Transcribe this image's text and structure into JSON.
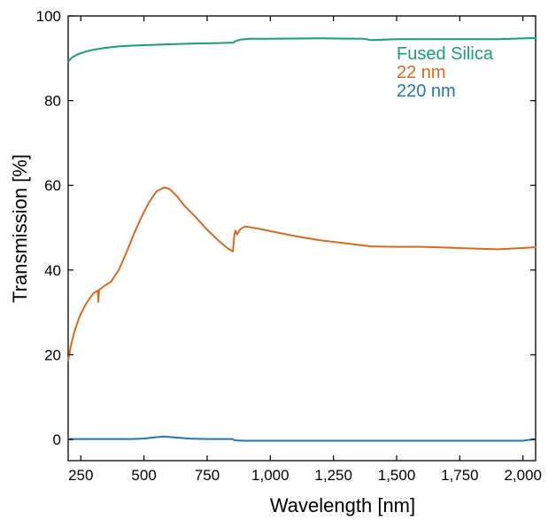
{
  "chart_data": {
    "type": "line",
    "title": "",
    "xlabel": "Wavelength [nm]",
    "ylabel": "Transmission [%]",
    "xlim": [
      200,
      2050
    ],
    "ylim": [
      -5,
      100
    ],
    "xticks": [
      250,
      500,
      750,
      1000,
      1250,
      1500,
      1750,
      2000
    ],
    "xtick_labels": [
      "250",
      "500",
      "750",
      "1,000",
      "1,250",
      "1,500",
      "1,750",
      "2,000"
    ],
    "yticks": [
      0,
      20,
      40,
      60,
      80,
      100
    ],
    "ytick_labels": [
      "0",
      "20",
      "40",
      "60",
      "80",
      "100"
    ],
    "grid": false,
    "legend_position": "top-right",
    "series": [
      {
        "name": "Fused Silica",
        "color": "#1a9e77",
        "points": [
          [
            200,
            89.2
          ],
          [
            215,
            90.2
          ],
          [
            240,
            91.0
          ],
          [
            270,
            91.6
          ],
          [
            300,
            92.0
          ],
          [
            350,
            92.5
          ],
          [
            400,
            92.8
          ],
          [
            450,
            93.0
          ],
          [
            500,
            93.1
          ],
          [
            600,
            93.3
          ],
          [
            700,
            93.5
          ],
          [
            800,
            93.6
          ],
          [
            855,
            93.7
          ],
          [
            860,
            94.0
          ],
          [
            880,
            94.4
          ],
          [
            920,
            94.6
          ],
          [
            1000,
            94.6
          ],
          [
            1200,
            94.7
          ],
          [
            1370,
            94.6
          ],
          [
            1380,
            94.5
          ],
          [
            1400,
            94.3
          ],
          [
            1500,
            94.5
          ],
          [
            1700,
            94.5
          ],
          [
            1900,
            94.5
          ],
          [
            2050,
            94.8
          ]
        ]
      },
      {
        "name": "22 nm",
        "color": "#d9691c",
        "points": [
          [
            200,
            18.5
          ],
          [
            210,
            22
          ],
          [
            225,
            25.5
          ],
          [
            245,
            29
          ],
          [
            270,
            32
          ],
          [
            300,
            34.5
          ],
          [
            318,
            35.2
          ],
          [
            320,
            32.5
          ],
          [
            322,
            35.3
          ],
          [
            345,
            36.3
          ],
          [
            370,
            37.3
          ],
          [
            400,
            40
          ],
          [
            430,
            44
          ],
          [
            460,
            48.5
          ],
          [
            490,
            52.5
          ],
          [
            520,
            56
          ],
          [
            550,
            58.6
          ],
          [
            580,
            59.5
          ],
          [
            600,
            59.2
          ],
          [
            630,
            57.5
          ],
          [
            660,
            55.2
          ],
          [
            700,
            52.8
          ],
          [
            750,
            49.5
          ],
          [
            800,
            46.7
          ],
          [
            830,
            45.2
          ],
          [
            852,
            44.4
          ],
          [
            858,
            48.5
          ],
          [
            862,
            49.3
          ],
          [
            868,
            48.4
          ],
          [
            880,
            49.6
          ],
          [
            900,
            50.3
          ],
          [
            950,
            49.8
          ],
          [
            1000,
            49.2
          ],
          [
            1100,
            48
          ],
          [
            1200,
            47
          ],
          [
            1300,
            46.3
          ],
          [
            1400,
            45.6
          ],
          [
            1500,
            45.5
          ],
          [
            1600,
            45.5
          ],
          [
            1700,
            45.3
          ],
          [
            1800,
            45.1
          ],
          [
            1900,
            44.9
          ],
          [
            2000,
            45.2
          ],
          [
            2050,
            45.4
          ]
        ]
      },
      {
        "name": "220 nm",
        "color": "#1f77b4",
        "points": [
          [
            200,
            0.1
          ],
          [
            300,
            0.1
          ],
          [
            450,
            0.1
          ],
          [
            500,
            0.2
          ],
          [
            540,
            0.5
          ],
          [
            580,
            0.7
          ],
          [
            620,
            0.5
          ],
          [
            680,
            0.2
          ],
          [
            750,
            0.1
          ],
          [
            850,
            0.1
          ],
          [
            860,
            -0.2
          ],
          [
            900,
            -0.3
          ],
          [
            1200,
            -0.3
          ],
          [
            1600,
            -0.3
          ],
          [
            2000,
            -0.3
          ],
          [
            2050,
            0.1
          ]
        ]
      }
    ]
  }
}
